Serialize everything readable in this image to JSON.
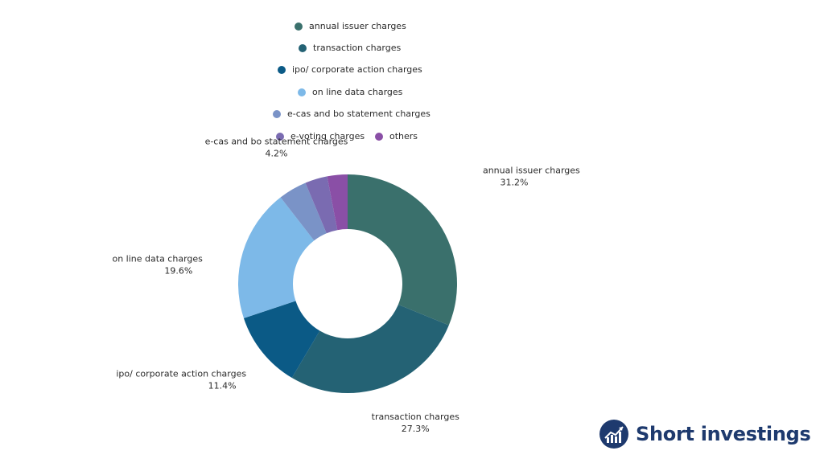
{
  "chart_data": {
    "type": "pie",
    "style": "donut",
    "categories": [
      "annual issuer charges",
      "transaction charges",
      "ipo/ corporate action charges",
      "on line data charges",
      "e-cas and bo statement charges",
      "e-voting charges",
      "others"
    ],
    "values": [
      31.2,
      27.3,
      11.4,
      19.6,
      4.2,
      3.3,
      3.0
    ],
    "value_labels": [
      "31.2%",
      "27.3%",
      "11.4%",
      "19.6%",
      "4.2%",
      "",
      ""
    ],
    "colors": [
      "#3a706c",
      "#246274",
      "#0b5a86",
      "#7db9e8",
      "#7a93c7",
      "#7a6bb1",
      "#8a4fa6"
    ],
    "legend_position": "top",
    "title": ""
  },
  "brand": {
    "name": "Short investings",
    "logo_icon": "rising-chart-icon",
    "color": "#1e3a6e"
  }
}
